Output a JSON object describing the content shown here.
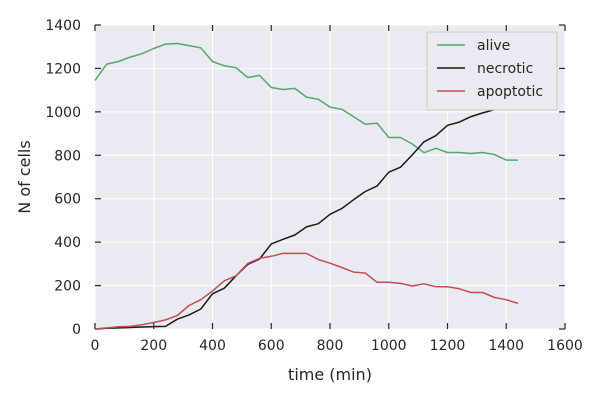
{
  "chart_data": {
    "type": "line",
    "title": "",
    "xlabel": "time (min)",
    "ylabel": "N of cells",
    "xlim": [
      0,
      1600
    ],
    "ylim": [
      0,
      1400
    ],
    "xticks": [
      0,
      200,
      400,
      600,
      800,
      1000,
      1200,
      1400,
      1600
    ],
    "yticks": [
      0,
      200,
      400,
      600,
      800,
      1000,
      1200,
      1400
    ],
    "grid": true,
    "legend_position": "top-right",
    "background": "#eaeaf2",
    "x": [
      0,
      40,
      80,
      120,
      160,
      200,
      240,
      280,
      320,
      360,
      400,
      440,
      480,
      520,
      560,
      600,
      640,
      680,
      720,
      760,
      800,
      840,
      880,
      920,
      960,
      1000,
      1040,
      1080,
      1120,
      1160,
      1200,
      1240,
      1280,
      1320,
      1360,
      1400,
      1440
    ],
    "series": [
      {
        "name": "alive",
        "color": "#55a868",
        "values": [
          1145,
          1220,
          1232,
          1252,
          1268,
          1292,
          1312,
          1315,
          1305,
          1295,
          1232,
          1212,
          1203,
          1158,
          1168,
          1112,
          1103,
          1108,
          1068,
          1058,
          1022,
          1012,
          978,
          943,
          948,
          882,
          882,
          852,
          812,
          832,
          813,
          813,
          808,
          813,
          803,
          778,
          778
        ]
      },
      {
        "name": "necrotic",
        "color": "#1a1a1a",
        "values": [
          0,
          3,
          5,
          7,
          9,
          11,
          12,
          45,
          65,
          92,
          162,
          188,
          245,
          298,
          322,
          392,
          413,
          433,
          470,
          485,
          528,
          555,
          595,
          633,
          658,
          722,
          745,
          802,
          862,
          890,
          938,
          953,
          978,
          995,
          1010,
          1040,
          1060
        ]
      },
      {
        "name": "apoptotic",
        "color": "#c44e52",
        "values": [
          0,
          5,
          10,
          12,
          20,
          30,
          42,
          62,
          108,
          135,
          175,
          222,
          245,
          302,
          325,
          335,
          348,
          348,
          348,
          320,
          303,
          283,
          262,
          258,
          215,
          215,
          210,
          198,
          208,
          195,
          195,
          185,
          168,
          168,
          145,
          135,
          118
        ]
      }
    ]
  }
}
